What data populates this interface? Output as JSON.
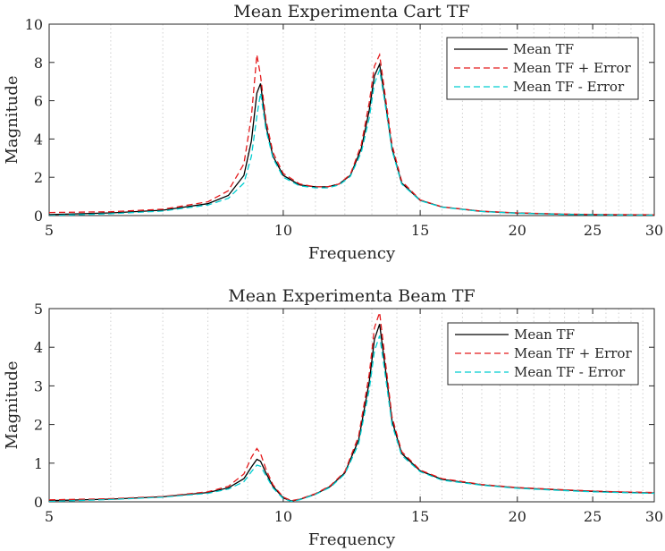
{
  "chart_data": [
    {
      "type": "line",
      "title": "Mean Experimenta Cart TF",
      "xlabel": "Frequency",
      "ylabel": "Magnitude",
      "xscale": "log",
      "xlim": [
        5,
        30
      ],
      "ylim": [
        0,
        10
      ],
      "xticks": [
        5,
        10,
        15,
        20,
        25,
        30
      ],
      "xtick_labels": [
        "5",
        "10",
        "15",
        "20",
        "25",
        "30"
      ],
      "yticks": [
        0,
        2,
        4,
        6,
        8,
        10
      ],
      "ytick_labels": [
        "0",
        "2",
        "4",
        "6",
        "8",
        "10"
      ],
      "grid": "x-minor dotted",
      "legend_position": "top-right",
      "series": [
        {
          "name": "Mean TF",
          "color": "#000000",
          "dash": "solid",
          "x": [
            5,
            6,
            7,
            8,
            8.5,
            8.9,
            9.1,
            9.25,
            9.35,
            9.5,
            9.7,
            10,
            10.5,
            11,
            11.4,
            11.8,
            12.2,
            12.6,
            12.9,
            13.1,
            13.3,
            13.5,
            13.8,
            14.2,
            15,
            16,
            18,
            20,
            23,
            25,
            27,
            30
          ],
          "y": [
            0.05,
            0.14,
            0.28,
            0.62,
            1.05,
            2.1,
            3.9,
            6.4,
            6.9,
            4.7,
            3.1,
            2.1,
            1.6,
            1.5,
            1.5,
            1.65,
            2.1,
            3.5,
            5.5,
            7.3,
            7.9,
            6.2,
            3.5,
            1.7,
            0.8,
            0.45,
            0.22,
            0.13,
            0.07,
            0.05,
            0.04,
            0.03
          ]
        },
        {
          "name": "Mean TF + Error",
          "color": "#e41a1c",
          "dash": "dashed",
          "x": [
            5,
            6,
            7,
            8,
            8.5,
            8.9,
            9.1,
            9.25,
            9.35,
            9.5,
            9.7,
            10,
            10.5,
            11,
            11.4,
            11.8,
            12.2,
            12.6,
            12.9,
            13.1,
            13.3,
            13.5,
            13.8,
            14.2,
            15,
            16,
            18,
            20,
            23,
            25,
            27,
            30
          ],
          "y": [
            0.16,
            0.2,
            0.33,
            0.72,
            1.3,
            2.7,
            5.2,
            8.4,
            7.3,
            5.0,
            3.3,
            2.2,
            1.65,
            1.5,
            1.5,
            1.65,
            2.15,
            3.7,
            5.9,
            7.8,
            8.4,
            6.5,
            3.7,
            1.8,
            0.82,
            0.46,
            0.23,
            0.14,
            0.08,
            0.06,
            0.05,
            0.04
          ]
        },
        {
          "name": "Mean TF - Error",
          "color": "#00cdd0",
          "dash": "dashed",
          "x": [
            5,
            6,
            7,
            8,
            8.5,
            8.9,
            9.1,
            9.25,
            9.35,
            9.5,
            9.7,
            10,
            10.5,
            11,
            11.4,
            11.8,
            12.2,
            12.6,
            12.9,
            13.1,
            13.3,
            13.5,
            13.8,
            14.2,
            15,
            16,
            18,
            20,
            23,
            25,
            27,
            30
          ],
          "y": [
            0.0,
            0.1,
            0.24,
            0.55,
            0.9,
            1.7,
            3.1,
            5.2,
            6.4,
            4.5,
            3.0,
            2.0,
            1.55,
            1.45,
            1.45,
            1.6,
            2.05,
            3.3,
            5.1,
            6.9,
            7.6,
            6.0,
            3.4,
            1.65,
            0.78,
            0.44,
            0.21,
            0.12,
            0.06,
            0.04,
            0.03,
            0.02
          ]
        }
      ]
    },
    {
      "type": "line",
      "title": "Mean Experimenta Beam TF",
      "xlabel": "Frequency",
      "ylabel": "Magnitude",
      "xscale": "log",
      "xlim": [
        5,
        30
      ],
      "ylim": [
        0,
        5
      ],
      "xticks": [
        5,
        10,
        15,
        20,
        25,
        30
      ],
      "xtick_labels": [
        "5",
        "10",
        "15",
        "20",
        "25",
        "30"
      ],
      "yticks": [
        0,
        1,
        2,
        3,
        4,
        5
      ],
      "ytick_labels": [
        "0",
        "1",
        "2",
        "3",
        "4",
        "5"
      ],
      "grid": "x-minor dotted",
      "legend_position": "top-right",
      "series": [
        {
          "name": "Mean TF",
          "color": "#000000",
          "dash": "solid",
          "x": [
            5,
            6,
            7,
            8,
            8.5,
            8.9,
            9.1,
            9.25,
            9.35,
            9.5,
            9.7,
            10,
            10.25,
            10.5,
            11,
            11.5,
            12,
            12.5,
            12.9,
            13.1,
            13.3,
            13.5,
            13.8,
            14.2,
            15,
            16,
            18,
            20,
            23,
            25,
            27,
            30
          ],
          "y": [
            0.03,
            0.07,
            0.13,
            0.24,
            0.36,
            0.6,
            0.9,
            1.1,
            1.05,
            0.75,
            0.4,
            0.1,
            0.02,
            0.06,
            0.2,
            0.4,
            0.75,
            1.6,
            3.1,
            4.2,
            4.6,
            3.6,
            2.1,
            1.25,
            0.8,
            0.58,
            0.44,
            0.36,
            0.3,
            0.27,
            0.25,
            0.23
          ]
        },
        {
          "name": "Mean TF + Error",
          "color": "#e41a1c",
          "dash": "dashed",
          "x": [
            5,
            6,
            7,
            8,
            8.5,
            8.9,
            9.1,
            9.25,
            9.35,
            9.5,
            9.7,
            10,
            10.25,
            10.5,
            11,
            11.5,
            12,
            12.5,
            12.9,
            13.1,
            13.3,
            13.5,
            13.8,
            14.2,
            15,
            16,
            18,
            20,
            23,
            25,
            27,
            30
          ],
          "y": [
            0.05,
            0.08,
            0.14,
            0.26,
            0.4,
            0.72,
            1.15,
            1.38,
            1.25,
            0.85,
            0.44,
            0.12,
            0.03,
            0.07,
            0.21,
            0.42,
            0.78,
            1.7,
            3.3,
            4.5,
            4.9,
            3.8,
            2.2,
            1.3,
            0.82,
            0.6,
            0.45,
            0.37,
            0.31,
            0.28,
            0.26,
            0.24
          ]
        },
        {
          "name": "Mean TF - Error",
          "color": "#00cdd0",
          "dash": "dashed",
          "x": [
            5,
            6,
            7,
            8,
            8.5,
            8.9,
            9.1,
            9.25,
            9.35,
            9.5,
            9.7,
            10,
            10.25,
            10.5,
            11,
            11.5,
            12,
            12.5,
            12.9,
            13.1,
            13.3,
            13.5,
            13.8,
            14.2,
            15,
            16,
            18,
            20,
            23,
            25,
            27,
            30
          ],
          "y": [
            0.01,
            0.06,
            0.12,
            0.22,
            0.33,
            0.52,
            0.78,
            0.95,
            0.92,
            0.68,
            0.36,
            0.08,
            0.01,
            0.05,
            0.19,
            0.38,
            0.72,
            1.5,
            2.9,
            3.9,
            4.3,
            3.4,
            2.0,
            1.2,
            0.78,
            0.56,
            0.43,
            0.35,
            0.29,
            0.26,
            0.24,
            0.22
          ]
        }
      ]
    }
  ]
}
